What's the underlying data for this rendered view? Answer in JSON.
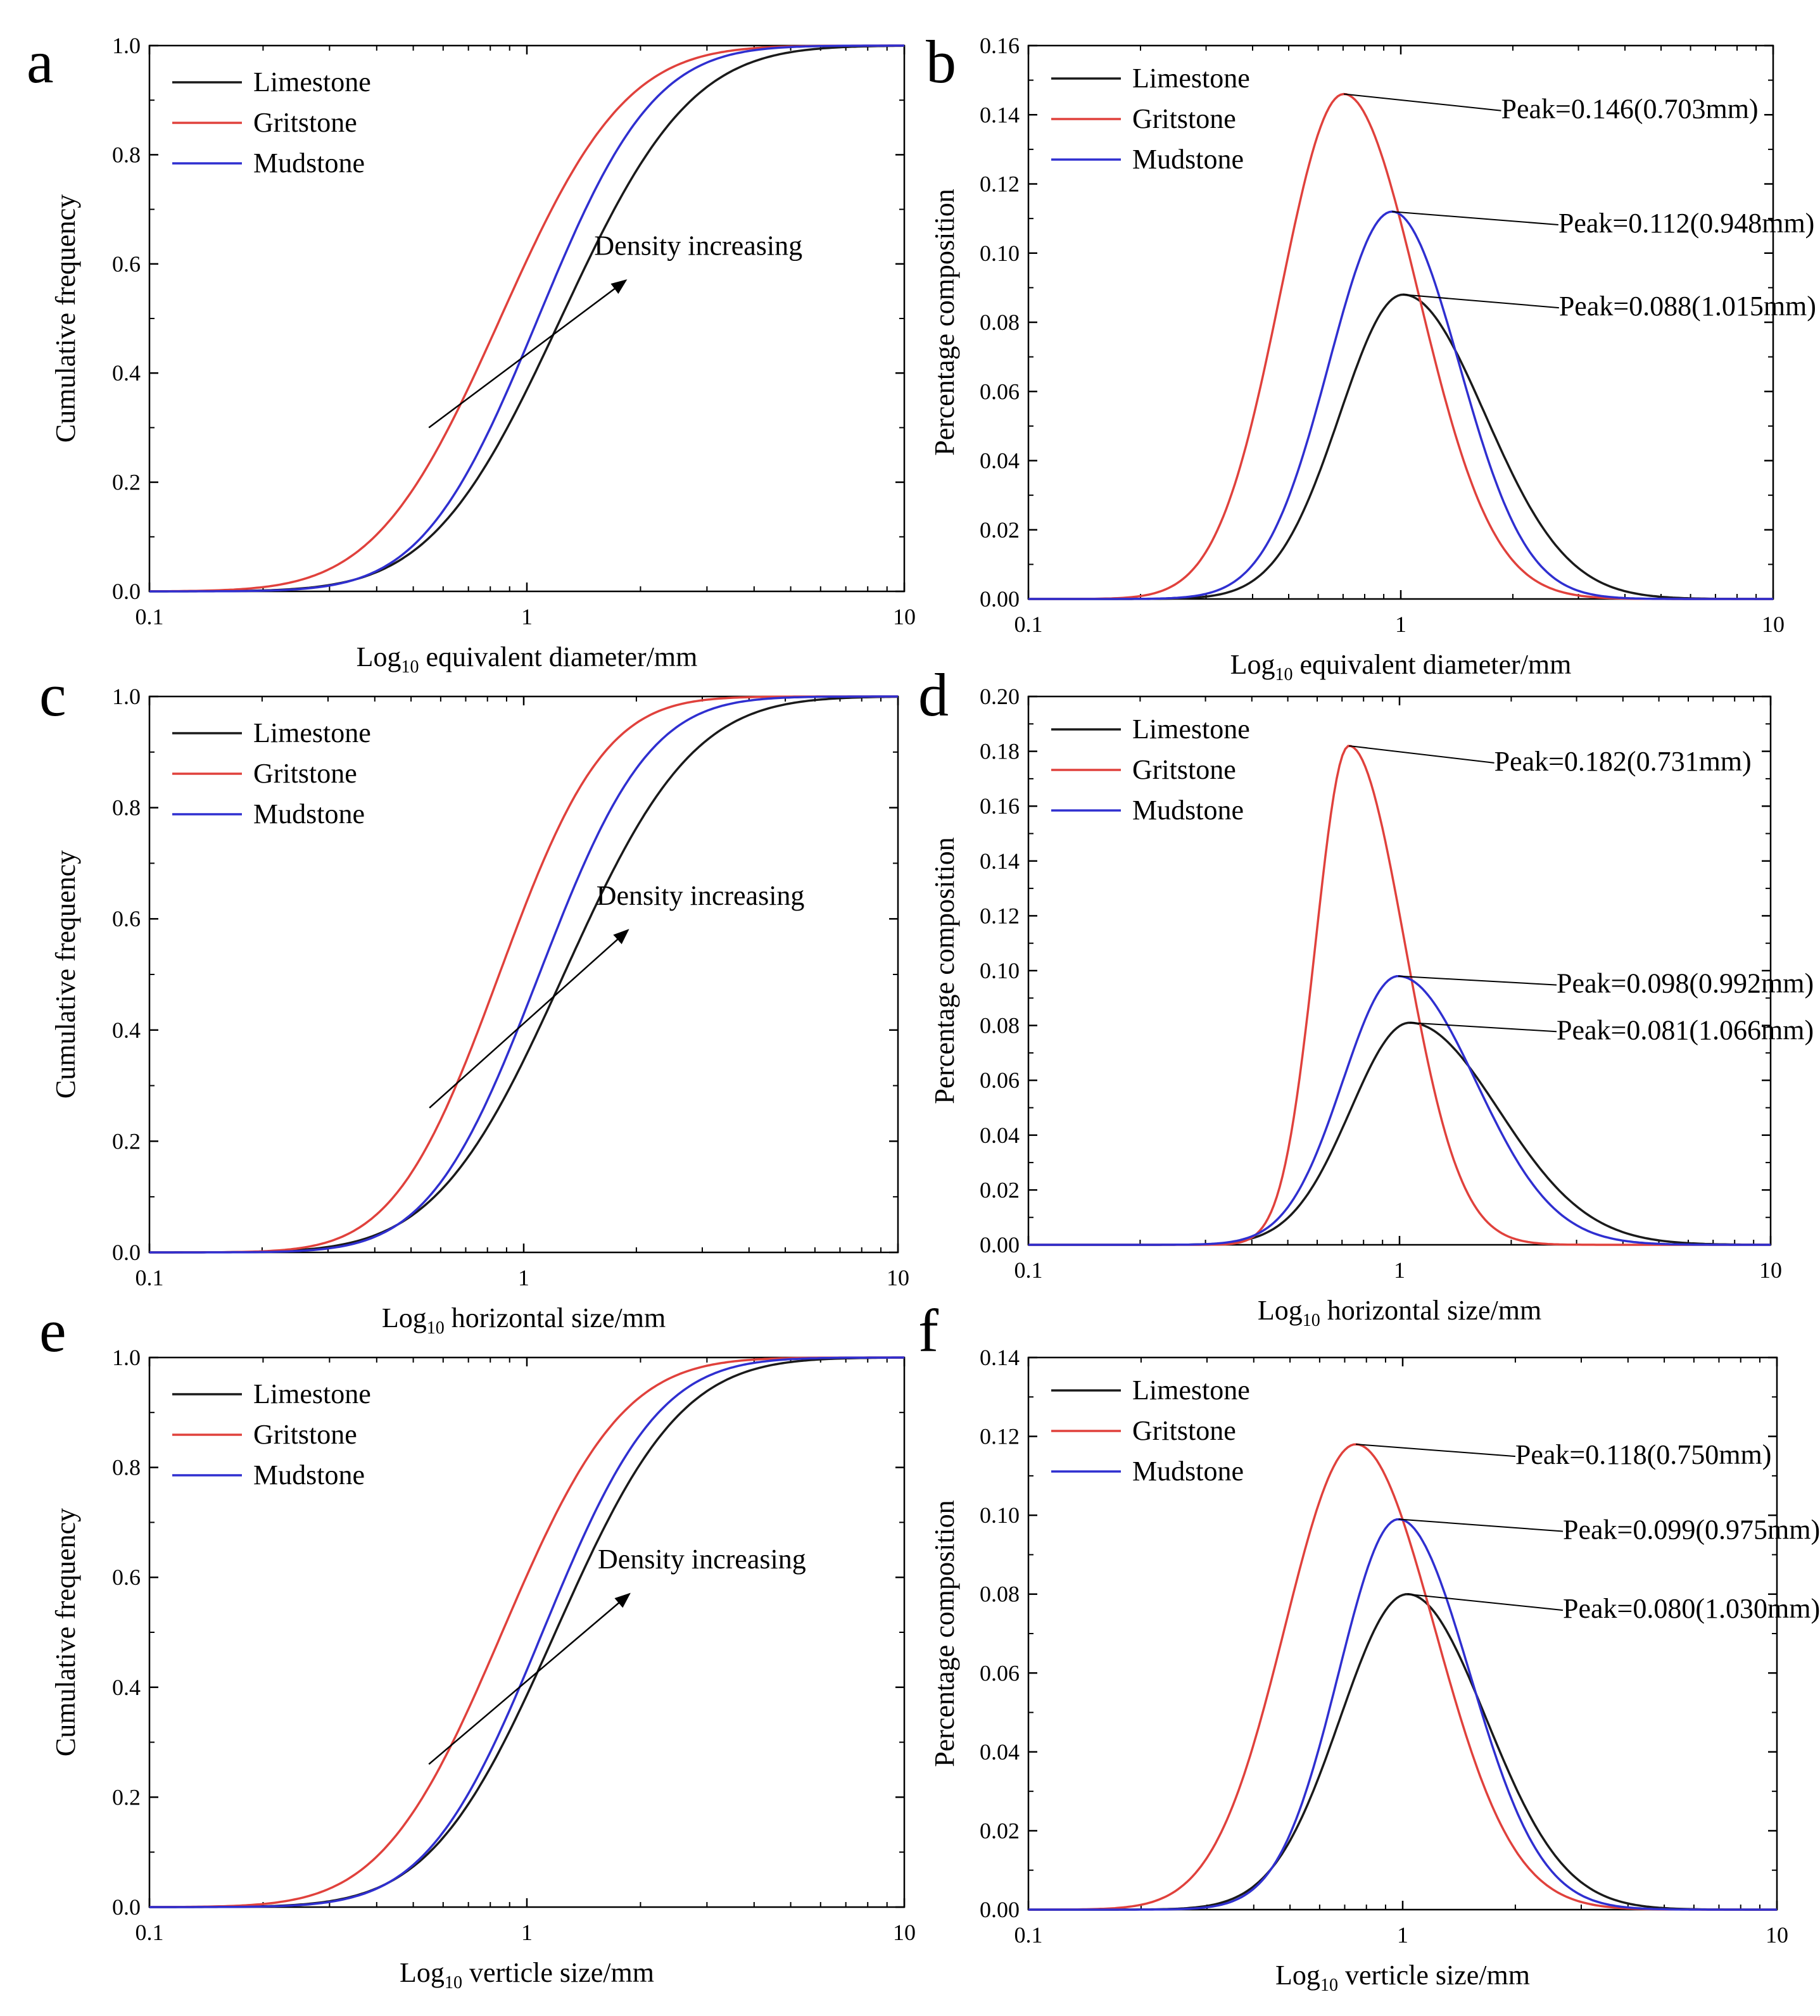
{
  "figure": {
    "colors": {
      "Limestone": "#1a1a1a",
      "Gritstone": "#e0413c",
      "Mudstone": "#2f2fd0"
    },
    "legend": [
      "Limestone",
      "Gritstone",
      "Mudstone"
    ],
    "log_prefix": "Log",
    "log_subscript": "10"
  },
  "chart_data": [
    {
      "panel": "a",
      "type": "line",
      "kind": "cdf",
      "xlabel_rest": " equivalent diameter/mm",
      "ylabel": "Cumulative frequency",
      "xscale": "log",
      "xlim": [
        0.1,
        10
      ],
      "ylim": [
        0,
        1
      ],
      "xticks": [
        "0.1",
        "1",
        "10"
      ],
      "yticks": [
        "0.0",
        "0.2",
        "0.4",
        "0.6",
        "0.8",
        "1.0"
      ],
      "series": [
        {
          "name": "Limestone",
          "median": 1.23,
          "spread": 0.27
        },
        {
          "name": "Gritstone",
          "median": 0.85,
          "spread": 0.26
        },
        {
          "name": "Mudstone",
          "median": 1.07,
          "spread": 0.24
        }
      ],
      "annotation": {
        "text": "Density increasing",
        "arrow_from": [
          0.55,
          0.3
        ],
        "arrow_to": [
          1.83,
          0.57
        ]
      }
    },
    {
      "panel": "b",
      "type": "line",
      "kind": "pdf",
      "xlabel_rest": " equivalent diameter/mm",
      "ylabel": "Percentage composition",
      "xscale": "log",
      "xlim": [
        0.1,
        10
      ],
      "ylim": [
        0,
        0.16
      ],
      "xticks": [
        "0.1",
        "1",
        "10"
      ],
      "yticks": [
        "0.00",
        "0.02",
        "0.04",
        "0.06",
        "0.08",
        "0.10",
        "0.12",
        "0.14",
        "0.16"
      ],
      "series": [
        {
          "name": "Limestone",
          "peak": 0.088,
          "peak_x": 1.015,
          "left_width": 0.17,
          "right_width": 0.22
        },
        {
          "name": "Gritstone",
          "peak": 0.146,
          "peak_x": 0.703,
          "left_width": 0.17,
          "right_width": 0.2
        },
        {
          "name": "Mudstone",
          "peak": 0.112,
          "peak_x": 0.948,
          "left_width": 0.17,
          "right_width": 0.18
        }
      ],
      "peak_labels": [
        {
          "series": "Gritstone",
          "text": "Peak=0.146(0.703mm)",
          "label_at": [
            1.86,
            0.139
          ]
        },
        {
          "series": "Mudstone",
          "text": "Peak=0.112(0.948mm)",
          "label_at": [
            2.65,
            0.106
          ]
        },
        {
          "series": "Limestone",
          "text": "Peak=0.088(1.015mm)",
          "label_at": [
            2.66,
            0.082
          ]
        }
      ]
    },
    {
      "panel": "c",
      "type": "line",
      "kind": "cdf",
      "xlabel_rest": " horizontal size/mm",
      "ylabel": "Cumulative frequency",
      "xscale": "log",
      "xlim": [
        0.1,
        10
      ],
      "ylim": [
        0,
        1
      ],
      "xticks": [
        "0.1",
        "1",
        "10"
      ],
      "yticks": [
        "0.0",
        "0.2",
        "0.4",
        "0.6",
        "0.8",
        "1.0"
      ],
      "series": [
        {
          "name": "Limestone",
          "median": 1.28,
          "spread": 0.27
        },
        {
          "name": "Gritstone",
          "median": 0.86,
          "spread": 0.22
        },
        {
          "name": "Mudstone",
          "median": 1.1,
          "spread": 0.23
        }
      ],
      "annotation": {
        "text": "Density increasing",
        "arrow_from": [
          0.56,
          0.26
        ],
        "arrow_to": [
          1.9,
          0.58
        ]
      }
    },
    {
      "panel": "d",
      "type": "line",
      "kind": "pdf",
      "xlabel_rest": " horizontal size/mm",
      "ylabel": "Percentage composition",
      "xscale": "log",
      "xlim": [
        0.1,
        10
      ],
      "ylim": [
        0,
        0.2
      ],
      "xticks": [
        "0.1",
        "1",
        "10"
      ],
      "yticks": [
        "0.00",
        "0.02",
        "0.04",
        "0.06",
        "0.08",
        "0.10",
        "0.12",
        "0.14",
        "0.16",
        "0.18",
        "0.20"
      ],
      "series": [
        {
          "name": "Limestone",
          "peak": 0.081,
          "peak_x": 1.066,
          "left_width": 0.16,
          "right_width": 0.24
        },
        {
          "name": "Gritstone",
          "peak": 0.182,
          "peak_x": 0.731,
          "left_width": 0.09,
          "right_width": 0.15
        },
        {
          "name": "Mudstone",
          "peak": 0.098,
          "peak_x": 0.992,
          "left_width": 0.15,
          "right_width": 0.21
        }
      ],
      "peak_labels": [
        {
          "series": "Gritstone",
          "text": "Peak=0.182(0.731mm)",
          "label_at": [
            1.8,
            0.173
          ]
        },
        {
          "series": "Mudstone",
          "text": "Peak=0.098(0.992mm)",
          "label_at": [
            2.65,
            0.092
          ]
        },
        {
          "series": "Limestone",
          "text": "Peak=0.081(1.066mm)",
          "label_at": [
            2.65,
            0.075
          ]
        }
      ]
    },
    {
      "panel": "e",
      "type": "line",
      "kind": "cdf",
      "xlabel_rest": " verticle size/mm",
      "ylabel": "Cumulative frequency",
      "xscale": "log",
      "xlim": [
        0.1,
        10
      ],
      "ylim": [
        0,
        1
      ],
      "xticks": [
        "0.1",
        "1",
        "10"
      ],
      "yticks": [
        "0.0",
        "0.2",
        "0.4",
        "0.6",
        "0.8",
        "1.0"
      ],
      "series": [
        {
          "name": "Limestone",
          "median": 1.19,
          "spread": 0.26
        },
        {
          "name": "Gritstone",
          "median": 0.86,
          "spread": 0.25
        },
        {
          "name": "Mudstone",
          "median": 1.1,
          "spread": 0.24
        }
      ],
      "annotation": {
        "text": "Density increasing",
        "arrow_from": [
          0.55,
          0.26
        ],
        "arrow_to": [
          1.87,
          0.57
        ]
      }
    },
    {
      "panel": "f",
      "type": "line",
      "kind": "pdf",
      "xlabel_rest": " verticle size/mm",
      "ylabel": "Percentage composition",
      "xscale": "log",
      "xlim": [
        0.1,
        10
      ],
      "ylim": [
        0,
        0.14
      ],
      "xticks": [
        "0.1",
        "1",
        "10"
      ],
      "yticks": [
        "0.00",
        "0.02",
        "0.04",
        "0.06",
        "0.08",
        "0.10",
        "0.12",
        "0.14"
      ],
      "series": [
        {
          "name": "Limestone",
          "peak": 0.08,
          "peak_x": 1.03,
          "left_width": 0.18,
          "right_width": 0.21
        },
        {
          "name": "Gritstone",
          "peak": 0.118,
          "peak_x": 0.75,
          "left_width": 0.19,
          "right_width": 0.21
        },
        {
          "name": "Mudstone",
          "peak": 0.099,
          "peak_x": 0.975,
          "left_width": 0.16,
          "right_width": 0.19
        }
      ],
      "peak_labels": [
        {
          "series": "Gritstone",
          "text": "Peak=0.118(0.750mm)",
          "label_at": [
            2.0,
            0.113
          ]
        },
        {
          "series": "Mudstone",
          "text": "Peak=0.099(0.975mm)",
          "label_at": [
            2.68,
            0.094
          ]
        },
        {
          "series": "Limestone",
          "text": "Peak=0.080(1.030mm)",
          "label_at": [
            2.68,
            0.074
          ]
        }
      ]
    }
  ]
}
